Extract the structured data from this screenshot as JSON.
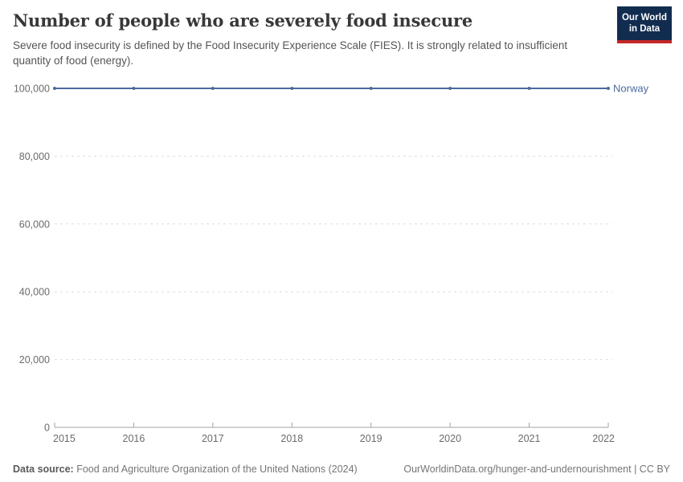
{
  "header": {
    "title": "Number of people who are severely food insecure",
    "subtitle": "Severe food insecurity is defined by the Food Insecurity Experience Scale (FIES). It is strongly related to insufficient quantity of food (energy)."
  },
  "logo": {
    "line1": "Our World",
    "line2": "in Data",
    "bg_color": "#112C4F",
    "stripe_color": "#C62828"
  },
  "footer": {
    "source_label": "Data source:",
    "source_text": " Food and Agriculture Organization of the United Nations (2024)",
    "link_text": "OurWorldinData.org/hunger-and-undernourishment | CC BY"
  },
  "chart_data": {
    "type": "line",
    "title": "Number of people who are severely food insecure",
    "x": [
      2015,
      2016,
      2017,
      2018,
      2019,
      2020,
      2021,
      2022
    ],
    "series": [
      {
        "name": "Norway",
        "values": [
          100000,
          100000,
          100000,
          100000,
          100000,
          100000,
          100000,
          100000
        ],
        "color": "#4C6A9C"
      }
    ],
    "xlabel": "",
    "ylabel": "",
    "ylim": [
      0,
      100000
    ],
    "yticks": [
      0,
      20000,
      40000,
      60000,
      80000,
      100000
    ],
    "grid": "horizontal-dashed",
    "legend_position": "end-of-line",
    "colors": {
      "gridline": "#dedede",
      "axis_line": "#a3a3a3",
      "tick_label": "#6b6b6b"
    }
  }
}
